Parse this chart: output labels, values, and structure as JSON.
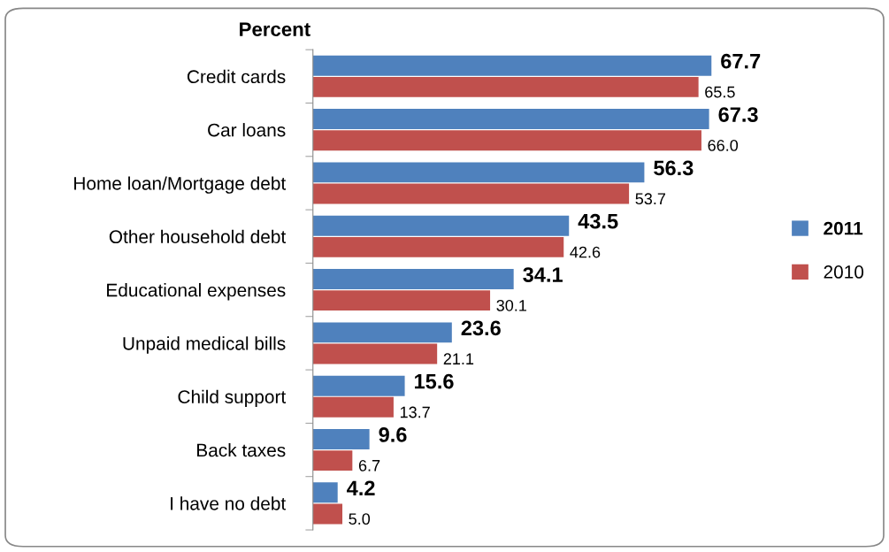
{
  "chart_data": {
    "type": "bar",
    "orientation": "horizontal",
    "title": "Percent",
    "categories": [
      "Credit cards",
      "Car loans",
      "Home loan/Mortgage debt",
      "Other household debt",
      "Educational expenses",
      "Unpaid medical bills",
      "Child support",
      "Back taxes",
      "I have no debt"
    ],
    "series": [
      {
        "name": "2011",
        "color": "#4f81bd",
        "values": [
          67.7,
          67.3,
          56.3,
          43.5,
          34.1,
          23.6,
          15.6,
          9.6,
          4.2
        ],
        "value_labels": [
          "67.7",
          "67.3",
          "56.3",
          "43.5",
          "34.1",
          "23.6",
          "15.6",
          "9.6",
          "4.2"
        ]
      },
      {
        "name": "2010",
        "color": "#c0504d",
        "values": [
          65.5,
          66.0,
          53.7,
          42.6,
          30.1,
          21.1,
          13.7,
          6.7,
          5.0
        ],
        "value_labels": [
          "65.5",
          "66.0",
          "53.7",
          "42.6",
          "30.1",
          "21.1",
          "13.7",
          "6.7",
          "5.0"
        ]
      }
    ],
    "tick_labels": "y",
    "grid": false,
    "legend": "right"
  }
}
